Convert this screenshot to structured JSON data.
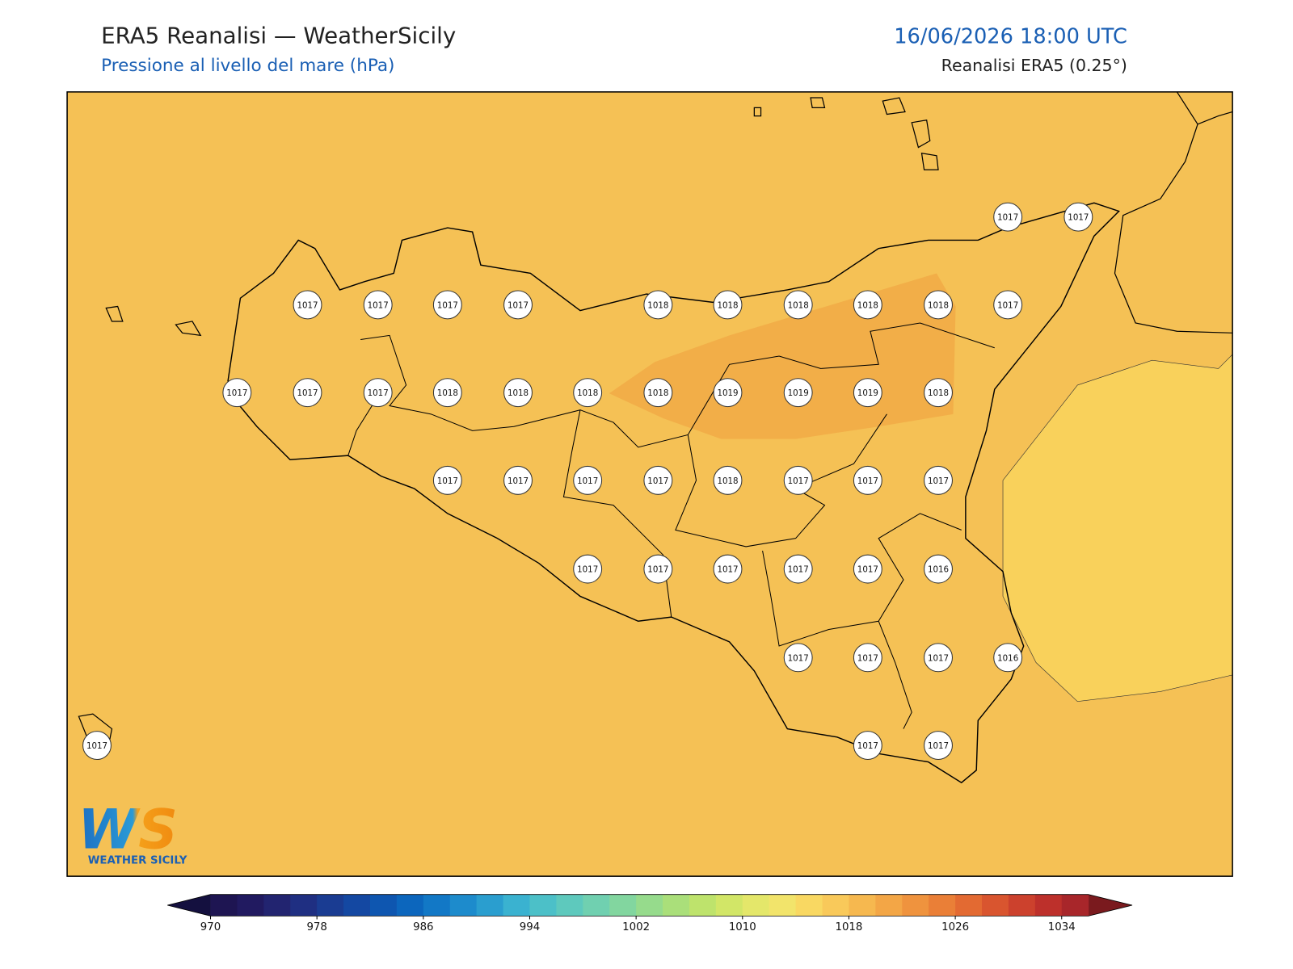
{
  "header": {
    "title": "ERA5 Reanalisi — WeatherSicily",
    "subtitle": "Pressione al livello del mare (hPa)",
    "datetime": "16/06/2026 18:00 UTC",
    "source": "Reanalisi ERA5 (0.25°)"
  },
  "map": {
    "stations": [
      1017,
      1017,
      1017,
      1017,
      1017,
      1017,
      1018,
      1018,
      1018,
      1018,
      1018,
      1017,
      1017,
      1017,
      1017,
      1018,
      1018,
      1018,
      1018,
      1019,
      1019,
      1019,
      1018,
      1017,
      1017,
      1017,
      1017,
      1018,
      1017,
      1017,
      1017,
      1017,
      1017,
      1017,
      1017,
      1017,
      1016,
      1017,
      1017,
      1017,
      1016,
      1017,
      1017,
      1017
    ],
    "logo": {
      "mark": "WS",
      "text": "WEATHER SICILY"
    }
  },
  "colorbar": {
    "lim": [
      970,
      1036
    ],
    "ticks": [
      970,
      978,
      986,
      994,
      1002,
      1010,
      1018,
      1026,
      1034
    ],
    "under_color": "#14103f",
    "over_color": "#7a1a1e",
    "colors": [
      "#1e1552",
      "#211a60",
      "#222470",
      "#1f2f82",
      "#1a3c92",
      "#1448a2",
      "#0e56b0",
      "#0c66bd",
      "#1278c6",
      "#1d8bcc",
      "#2a9ecf",
      "#3ab2d0",
      "#4cc0c8",
      "#5ec9bd",
      "#70d0b0",
      "#82d69f",
      "#96db8c",
      "#aadf7a",
      "#bee36c",
      "#d2e667",
      "#e4e76a",
      "#f2e46b",
      "#f9d862",
      "#f9c95a",
      "#f6b84f",
      "#f3a646",
      "#ef933e",
      "#ea7f37",
      "#e36a32",
      "#d9552f",
      "#cc412d",
      "#bd302b",
      "#a8262a"
    ]
  }
}
